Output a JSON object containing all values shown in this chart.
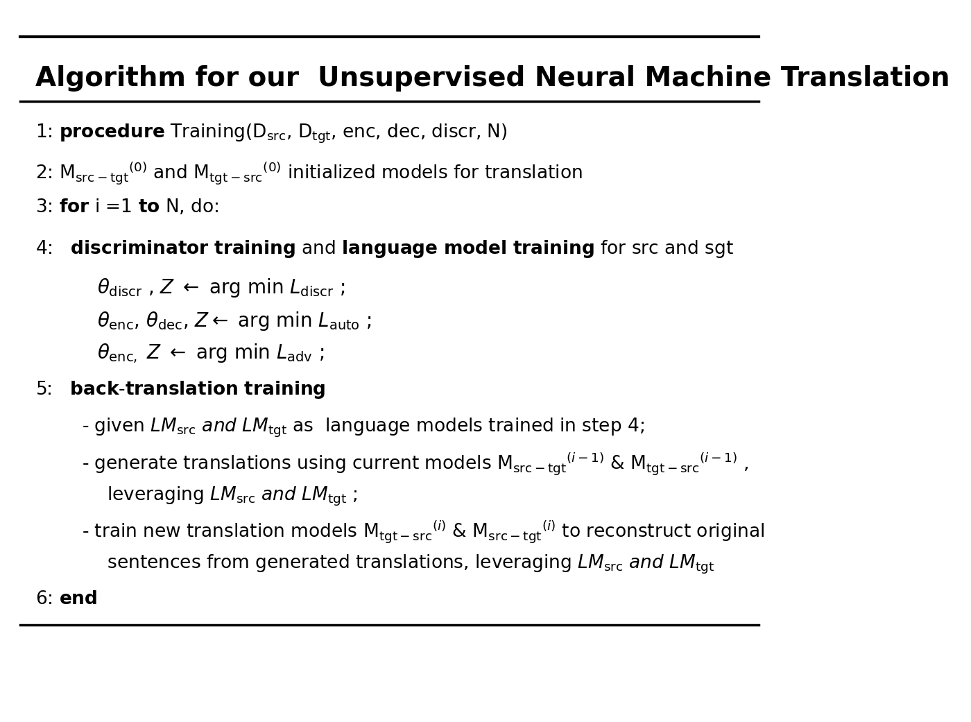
{
  "title": "Algorithm for our  Unsupervised Neural Machine Translation",
  "bg_color": "#ffffff",
  "text_color": "#000000",
  "title_fontsize": 28,
  "body_fontsize": 20,
  "line1": "1: \\mathbf{procedure}\\; \\mathrm{Training(D_{src}, D_{tgt},\\; enc,\\; dec,\\; discr,\\; N)}",
  "line2a": "2: \\mathrm{M}_{\\mathrm{src\\text{-}tgt}}^{(0)}\\; \\mathrm{and}\\; \\mathrm{M}_{\\mathrm{tgt\\text{-}src}}^{(0)}\\; \\mathrm{initialized\\; models\\; for\\; translation}",
  "line3": "3: \\mathbf{for}\\; \\mathrm{i =1}\\; \\mathbf{to}\\; \\mathrm{N,\\; do:}",
  "line4": "4:\\quad \\mathbf{discriminator\\; training}\\; \\mathrm{and}\\; \\mathbf{language\\; model\\; training}\\; \\mathrm{for\\; src\\; and\\; sgt}",
  "eq1": "\\quad\\quad\\theta_{\\mathrm{discr}}\\;,\\; \\mathit{Z} \\leftarrow \\mathrm{arg\\; min}\\; L_{\\mathrm{discr}}\\;;",
  "eq2": "\\quad\\quad\\theta_{\\mathrm{enc}},\\theta_{\\mathrm{dec}},\\; \\mathit{Z}\\leftarrow \\mathrm{arg\\; min}\\; L_{\\mathrm{auto}}\\;;",
  "eq3": "\\quad\\quad\\theta_{\\mathrm{enc,}}\\; \\mathit{Z} \\leftarrow \\mathrm{arg\\; min}\\; L_{\\mathrm{adv}}\\;;",
  "line5": "5:\\quad \\mathbf{back\\text{-}translation\\; training}",
  "bt1": "\\quad\\quad\\mathrm{-\\; given\\;} \\mathit{LM}_{\\mathrm{src}}\\; \\mathit{and\\; LM}_{\\mathrm{tgt}}\\; \\mathrm{as\\;\\; language\\; models\\; trained\\; in\\; step\\; 4;}",
  "bt2a": "\\quad\\quad\\mathrm{-\\; generate\\; translations\\; using\\; current\\; models\\;} \\mathrm{M}_{\\mathrm{src\\text{-}tgt}}^{(i\\text{-}1)}\\; \\mathrm{\\&\\; M}_{\\mathrm{tgt\\text{-}src}}^{(i\\text{-}1)}\\;,",
  "bt2b": "\\quad\\quad\\quad\\; \\mathrm{leveraging\\;}  \\mathit{LM}_{\\mathrm{src}}\\; \\mathit{and\\; LM}_{\\mathrm{tgt}}\\;;",
  "bt3a": "\\quad\\quad\\mathrm{-\\; train\\; new\\; translation\\; models\\;} \\mathrm{M}_{\\mathrm{tgt\\text{-}src}}^{(i)}\\; \\mathrm{\\&\\; M}_{\\mathrm{src\\text{-}tgt}}^{(i)}\\; \\mathrm{to\\; reconstruct\\; original}",
  "bt3b": "\\quad\\quad\\quad\\; \\mathrm{sentences\\; from\\; generated\\; translations,\\; leveraging\\;}  \\mathit{LM}_{\\mathrm{src}}\\; \\mathit{and\\; LM}_{\\mathrm{tgt}}",
  "line6": "6: \\mathbf{end}"
}
